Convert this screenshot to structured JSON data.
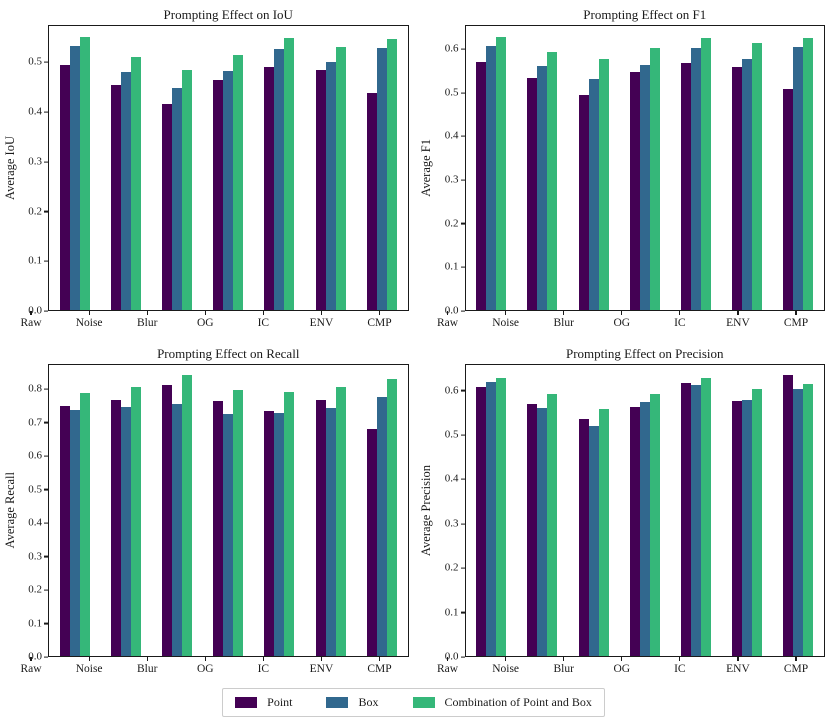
{
  "figure": {
    "background": "#ffffff",
    "axis_color": "#1a1a1a"
  },
  "palette": {
    "point": "#440154",
    "box": "#31688e",
    "combination": "#35b779"
  },
  "legend": {
    "items": [
      {
        "label": "Point",
        "color": "#440154"
      },
      {
        "label": "Box",
        "color": "#31688e"
      },
      {
        "label": "Combination of Point and Box",
        "color": "#35b779"
      }
    ]
  },
  "chart_data": [
    {
      "type": "bar",
      "title": "Prompting Effect on IoU",
      "ylabel": "Average IoU",
      "xlabel": "",
      "categories": [
        "Raw",
        "Noise",
        "Blur",
        "OG",
        "IC",
        "ENV",
        "CMP"
      ],
      "series": [
        {
          "name": "Point",
          "values": [
            0.497,
            0.455,
            0.418,
            0.466,
            0.492,
            0.486,
            0.44
          ]
        },
        {
          "name": "Box",
          "values": [
            0.535,
            0.481,
            0.45,
            0.483,
            0.528,
            0.503,
            0.53
          ]
        },
        {
          "name": "Combination of Point and Box",
          "values": [
            0.553,
            0.512,
            0.485,
            0.517,
            0.55,
            0.533,
            0.549
          ]
        }
      ],
      "ylim": [
        0,
        0.575
      ],
      "yticks": [
        0.0,
        0.1,
        0.2,
        0.3,
        0.4,
        0.5
      ],
      "grid": false,
      "legend_position": "figure-bottom"
    },
    {
      "type": "bar",
      "title": "Prompting Effect on F1",
      "ylabel": "Average F1",
      "xlabel": "",
      "categories": [
        "Raw",
        "Noise",
        "Blur",
        "OG",
        "IC",
        "ENV",
        "CMP"
      ],
      "series": [
        {
          "name": "Point",
          "values": [
            0.573,
            0.535,
            0.496,
            0.548,
            0.569,
            0.561,
            0.51
          ]
        },
        {
          "name": "Box",
          "values": [
            0.61,
            0.562,
            0.533,
            0.566,
            0.604,
            0.58,
            0.607
          ]
        },
        {
          "name": "Combination of Point and Box",
          "values": [
            0.63,
            0.596,
            0.578,
            0.605,
            0.628,
            0.615,
            0.627
          ]
        }
      ],
      "ylim": [
        0,
        0.655
      ],
      "yticks": [
        0.0,
        0.1,
        0.2,
        0.3,
        0.4,
        0.5,
        0.6
      ],
      "grid": false,
      "legend_position": "figure-bottom"
    },
    {
      "type": "bar",
      "title": "Prompting Effect on Recall",
      "ylabel": "Average Recall",
      "xlabel": "",
      "categories": [
        "Raw",
        "Noise",
        "Blur",
        "OG",
        "IC",
        "ENV",
        "CMP"
      ],
      "series": [
        {
          "name": "Point",
          "values": [
            0.753,
            0.77,
            0.816,
            0.768,
            0.737,
            0.77,
            0.682
          ]
        },
        {
          "name": "Box",
          "values": [
            0.74,
            0.75,
            0.757,
            0.729,
            0.731,
            0.745,
            0.78
          ]
        },
        {
          "name": "Combination of Point and Box",
          "values": [
            0.792,
            0.81,
            0.845,
            0.801,
            0.794,
            0.81,
            0.832
          ]
        }
      ],
      "ylim": [
        0,
        0.875
      ],
      "yticks": [
        0.0,
        0.1,
        0.2,
        0.3,
        0.4,
        0.5,
        0.6,
        0.7,
        0.8
      ],
      "grid": false,
      "legend_position": "figure-bottom"
    },
    {
      "type": "bar",
      "title": "Prompting Effect on Precision",
      "ylabel": "Average Precision",
      "xlabel": "",
      "categories": [
        "Raw",
        "Noise",
        "Blur",
        "OG",
        "IC",
        "ENV",
        "CMP"
      ],
      "series": [
        {
          "name": "Point",
          "values": [
            0.61,
            0.571,
            0.538,
            0.565,
            0.62,
            0.579,
            0.637
          ]
        },
        {
          "name": "Box",
          "values": [
            0.621,
            0.563,
            0.521,
            0.575,
            0.614,
            0.581,
            0.606
          ]
        },
        {
          "name": "Combination of Point and Box",
          "values": [
            0.63,
            0.594,
            0.56,
            0.594,
            0.63,
            0.605,
            0.616
          ]
        }
      ],
      "ylim": [
        0,
        0.66
      ],
      "yticks": [
        0.0,
        0.1,
        0.2,
        0.3,
        0.4,
        0.5,
        0.6
      ],
      "grid": false,
      "legend_position": "figure-bottom"
    }
  ]
}
